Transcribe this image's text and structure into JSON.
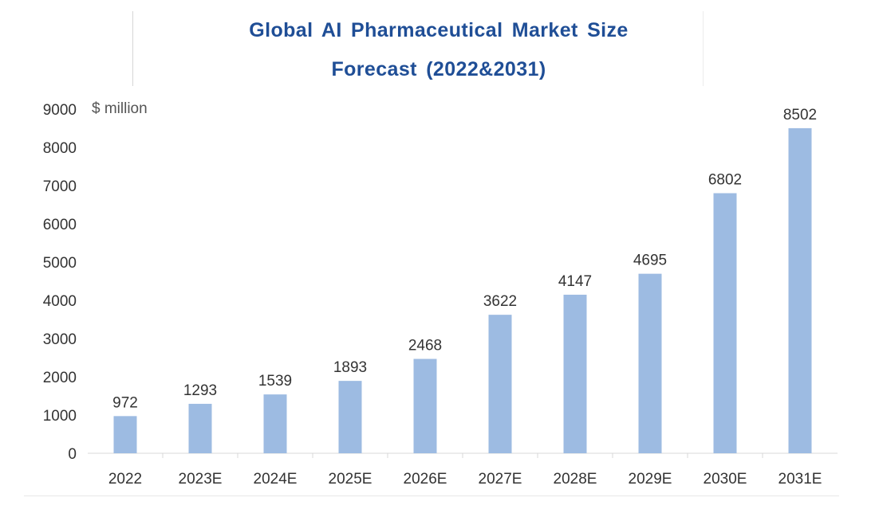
{
  "chart_data": {
    "type": "bar",
    "title_lines": [
      "Global AI Pharmaceutical Market Size",
      "Forecast (2022&2031)"
    ],
    "unit_label": "$ million",
    "categories": [
      "2022",
      "2023E",
      "2024E",
      "2025E",
      "2026E",
      "2027E",
      "2028E",
      "2029E",
      "2030E",
      "2031E"
    ],
    "values": [
      972,
      1293,
      1539,
      1893,
      2468,
      3622,
      4147,
      4695,
      6802,
      8502
    ],
    "y_ticks": [
      "0",
      "1000",
      "2000",
      "3000",
      "4000",
      "5000",
      "6000",
      "7000",
      "8000",
      "9000"
    ],
    "ylim": [
      0,
      9000
    ],
    "grid": false,
    "legend": "none",
    "bar_color": "#9dbbe2",
    "title_color": "#1f4e96",
    "text_color": "#333333"
  }
}
